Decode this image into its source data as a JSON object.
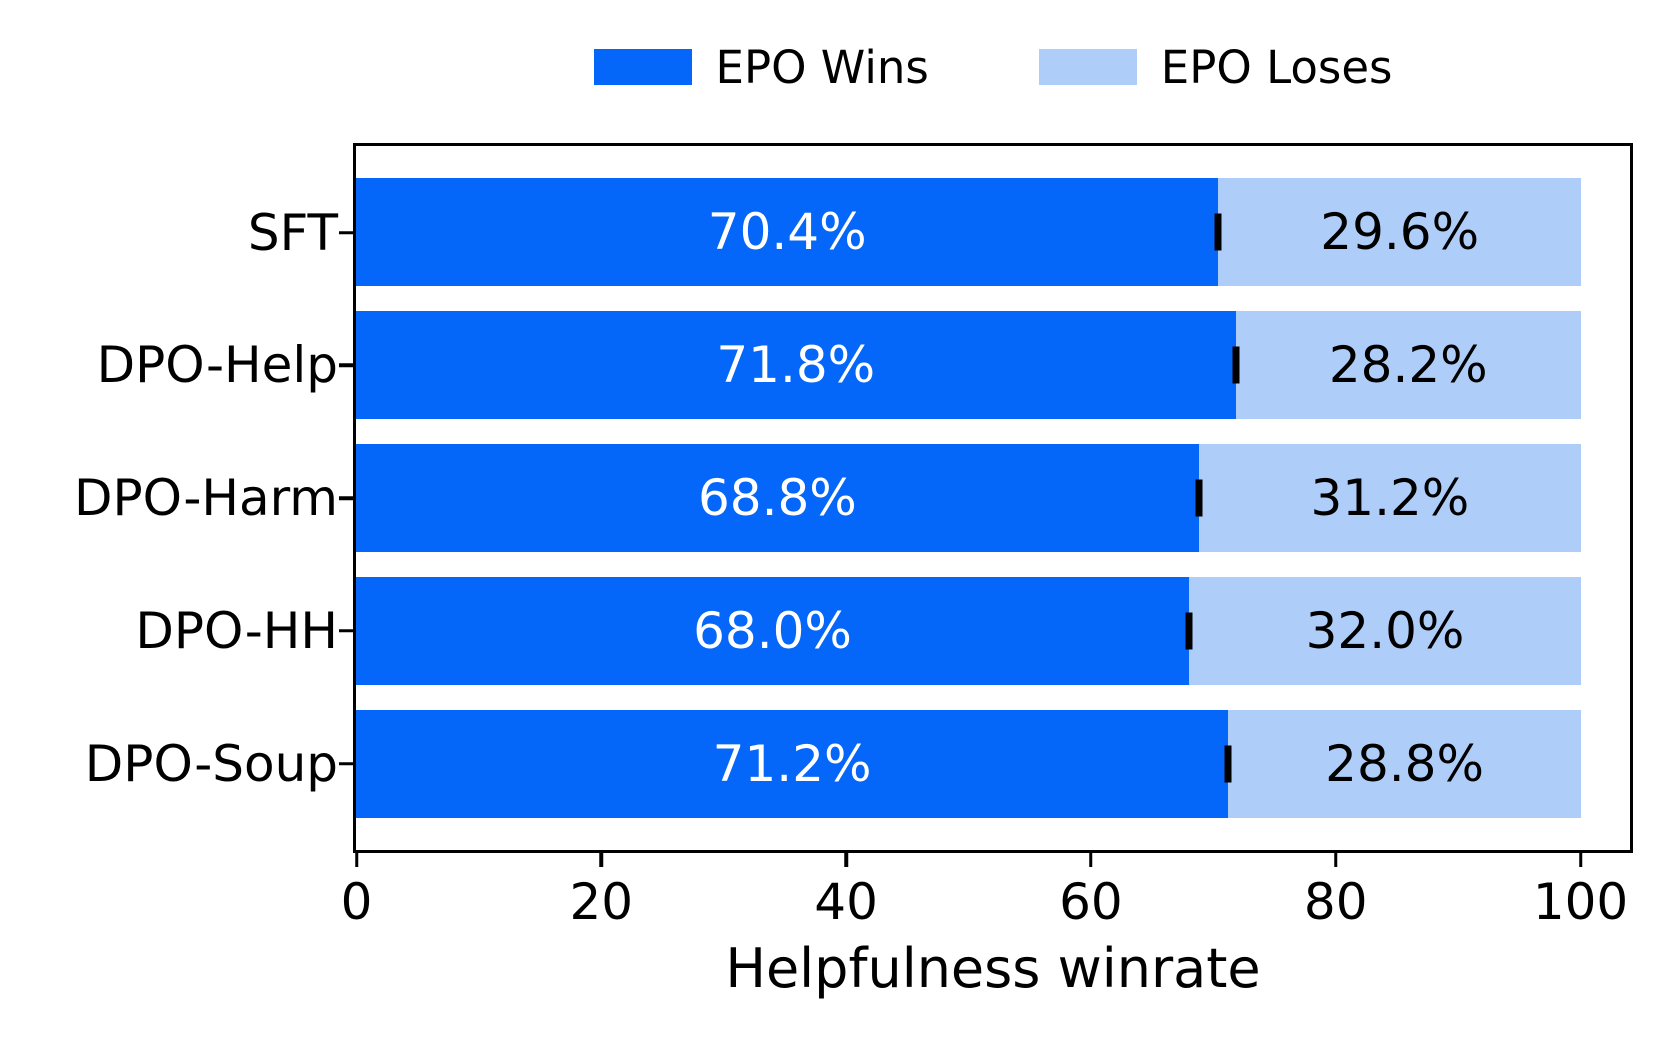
{
  "chart_data": {
    "type": "bar",
    "orientation": "horizontal",
    "stacked": true,
    "title": "",
    "xlabel": "Helpfulness winrate",
    "ylabel": "",
    "categories": [
      "SFT",
      "DPO-Help",
      "DPO-Harm",
      "DPO-HH",
      "DPO-Soup"
    ],
    "series": [
      {
        "name": "EPO Wins",
        "color": "#0566fa",
        "values": [
          70.4,
          71.8,
          68.8,
          68.0,
          71.2
        ],
        "labels": [
          "70.4%",
          "71.8%",
          "68.8%",
          "68.0%",
          "71.2%"
        ]
      },
      {
        "name": "EPO Loses",
        "color": "#aecdf8",
        "values": [
          29.6,
          28.2,
          31.2,
          32.0,
          28.8
        ],
        "labels": [
          "29.6%",
          "28.2%",
          "31.2%",
          "32.0%",
          "28.8%"
        ]
      }
    ],
    "error_marks_at_boundary": true,
    "error_mark_color": "#000000",
    "xlim": [
      0,
      104
    ],
    "xticks": [
      0,
      20,
      40,
      60,
      80,
      100
    ],
    "grid": false,
    "legend_position": "top-center",
    "axis_color": "#000000"
  }
}
